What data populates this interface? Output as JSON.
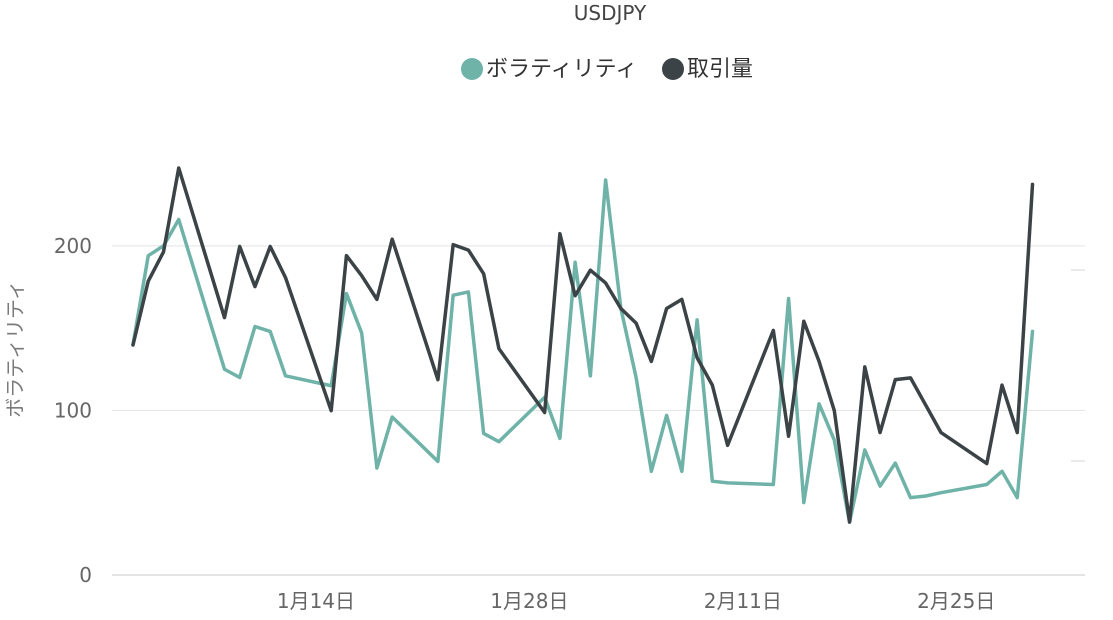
{
  "chart_data": {
    "type": "line",
    "title": "USDJPY",
    "ylabel": "ボラティリティ",
    "xlabel": "",
    "legend_position": "top-center",
    "grid": true,
    "ylim": [
      0,
      240
    ],
    "yticks": [
      0,
      100,
      200
    ],
    "x_ticks": [
      "1月14日",
      "1月28日",
      "2月11日",
      "2月25日"
    ],
    "secondary_axis": {
      "label_visible": false,
      "ticks_visible": false
    },
    "colors": {
      "volatility": "#6fb3a8",
      "volume": "#3b4346"
    },
    "x_index_domain": [
      1,
      62
    ],
    "x_tick_indices": [
      13,
      27,
      41,
      55
    ],
    "series": [
      {
        "name": "ボラティリティ",
        "axis": "left",
        "x": [
          1,
          2,
          3,
          4,
          7,
          8,
          9,
          10,
          11,
          14,
          15,
          16,
          17,
          18,
          21,
          22,
          23,
          24,
          25,
          28,
          29,
          30,
          31,
          32,
          33,
          34,
          35,
          36,
          37,
          38,
          39,
          40,
          43,
          44,
          45,
          46,
          47,
          48,
          49,
          50,
          51,
          52,
          53,
          54,
          57,
          58,
          59,
          60
        ],
        "values": [
          140,
          194,
          200,
          216,
          125,
          120,
          151,
          148,
          121,
          115,
          171,
          147,
          65,
          96,
          69,
          170,
          172,
          86,
          81,
          108,
          83,
          190,
          121,
          240,
          162,
          120,
          63,
          97,
          63,
          155,
          57,
          56,
          55,
          168,
          44,
          104,
          82,
          32,
          76,
          54,
          68,
          47,
          48,
          50,
          55,
          63,
          47,
          148
        ]
      },
      {
        "name": "取引量",
        "axis": "right",
        "x": [
          1,
          2,
          3,
          4,
          7,
          8,
          9,
          10,
          11,
          14,
          15,
          16,
          17,
          18,
          21,
          22,
          23,
          24,
          25,
          28,
          29,
          30,
          31,
          32,
          33,
          34,
          35,
          36,
          37,
          38,
          39,
          40,
          43,
          44,
          45,
          46,
          47,
          48,
          49,
          50,
          51,
          52,
          53,
          54,
          57,
          58,
          59,
          60
        ],
        "values": [
          126,
          161,
          177,
          223,
          141,
          180,
          158,
          180,
          163,
          90,
          175,
          164,
          151,
          184,
          107,
          181,
          178,
          165,
          124,
          89,
          187,
          153,
          167,
          160,
          146,
          138,
          117,
          146,
          151,
          119,
          104,
          71,
          134,
          76,
          139,
          117,
          90,
          29,
          114,
          78,
          107,
          108,
          93,
          78,
          61,
          104,
          78,
          214
        ]
      }
    ]
  }
}
